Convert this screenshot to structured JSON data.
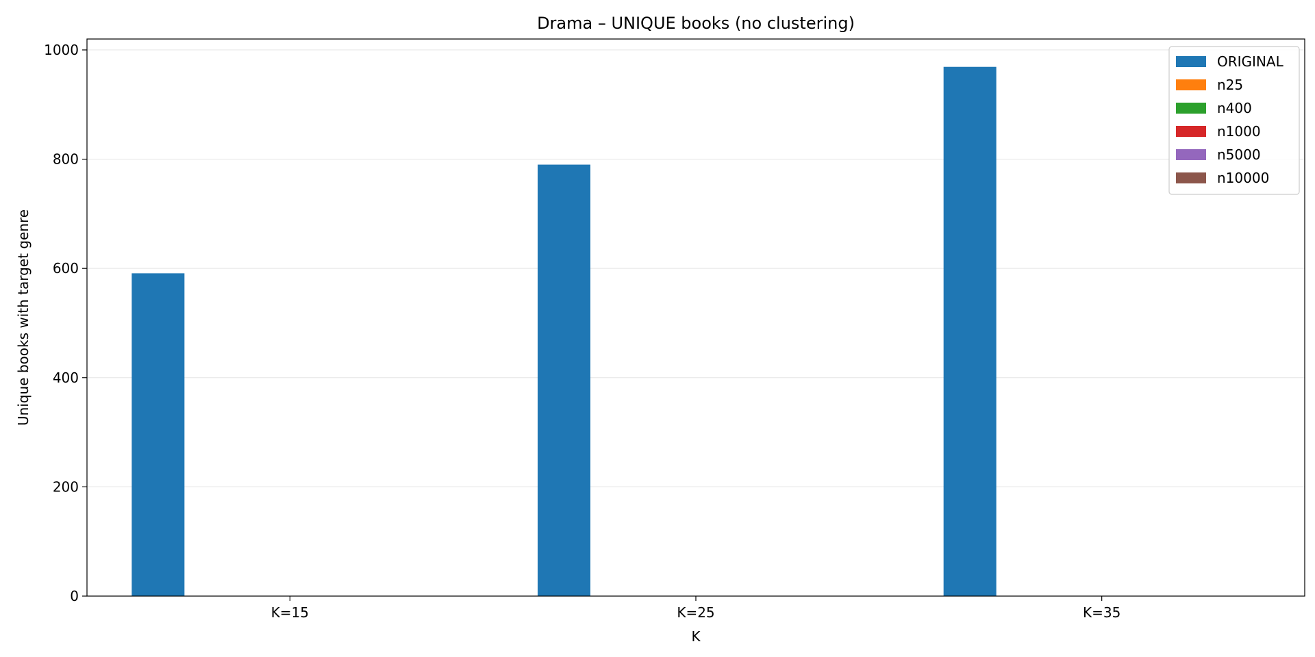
{
  "chart_data": {
    "type": "bar",
    "title": "Drama – UNIQUE books (no clustering)",
    "xlabel": "K",
    "ylabel": "Unique books with target genre",
    "categories": [
      "K=15",
      "K=25",
      "K=35"
    ],
    "ylim": [
      0,
      1020
    ],
    "yticks": [
      0,
      200,
      400,
      600,
      800,
      1000
    ],
    "grid": "y",
    "legend_position": "top-right",
    "series": [
      {
        "name": "ORIGINAL",
        "color": "#1f77b4",
        "values": [
          591,
          790,
          969
        ]
      },
      {
        "name": "n25",
        "color": "#ff7f0e",
        "values": [
          0,
          0,
          0
        ]
      },
      {
        "name": "n400",
        "color": "#2ca02c",
        "values": [
          0,
          0,
          0
        ]
      },
      {
        "name": "n1000",
        "color": "#d62728",
        "values": [
          0,
          0,
          0
        ]
      },
      {
        "name": "n5000",
        "color": "#9467bd",
        "values": [
          0,
          0,
          0
        ]
      },
      {
        "name": "n10000",
        "color": "#8c564b",
        "values": [
          0,
          0,
          0
        ]
      }
    ]
  }
}
